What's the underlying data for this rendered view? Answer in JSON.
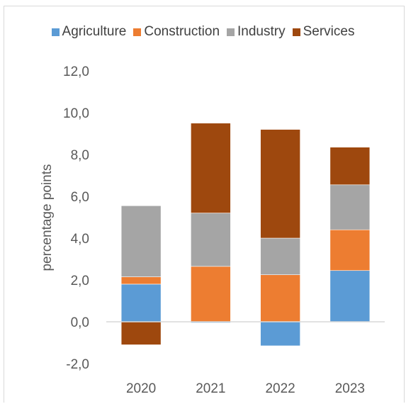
{
  "chart_data": {
    "type": "bar",
    "stacked": true,
    "categories": [
      "2020",
      "2021",
      "2022",
      "2023"
    ],
    "series": [
      {
        "name": "Agriculture",
        "color": "#5b9bd5",
        "values": [
          1.8,
          -0.05,
          -1.15,
          2.45
        ]
      },
      {
        "name": "Construction",
        "color": "#ed7d31",
        "values": [
          0.35,
          2.65,
          2.25,
          1.95
        ]
      },
      {
        "name": "Industry",
        "color": "#a5a5a5",
        "values": [
          3.4,
          2.55,
          1.75,
          2.15
        ]
      },
      {
        "name": "Services",
        "color": "#9e480e",
        "values": [
          -1.1,
          4.3,
          5.2,
          1.8
        ]
      }
    ],
    "ylabel": "percentage points",
    "ylim": [
      -2.0,
      12.0
    ],
    "yticks": [
      "-2,0",
      "0,0",
      "2,0",
      "4,0",
      "6,0",
      "8,0",
      "10,0",
      "12,0"
    ],
    "grid": false,
    "legend_position": "top"
  }
}
